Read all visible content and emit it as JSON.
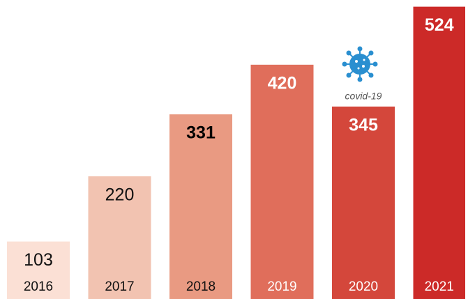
{
  "chart_data": {
    "type": "bar",
    "categories": [
      "2016",
      "2017",
      "2018",
      "2019",
      "2020",
      "2021"
    ],
    "values": [
      103,
      220,
      331,
      420,
      345,
      524
    ],
    "colors": [
      "#fbe0d5",
      "#f2c3b1",
      "#e99a82",
      "#e06e5b",
      "#d4473b",
      "#cc2a28"
    ],
    "value_label_colors": [
      "#111111",
      "#111111",
      "#000000",
      "#ffffff",
      "#ffffff",
      "#ffffff"
    ],
    "value_label_weights": [
      "normal",
      "normal",
      "bold",
      "bold",
      "bold",
      "bold"
    ],
    "category_label_colors": [
      "#111111",
      "#111111",
      "#111111",
      "#ffffff",
      "#ffffff",
      "#ffffff"
    ],
    "ylim": [
      0,
      536
    ],
    "annotations": [
      {
        "text": "covid-19",
        "category_index": 4
      }
    ]
  }
}
